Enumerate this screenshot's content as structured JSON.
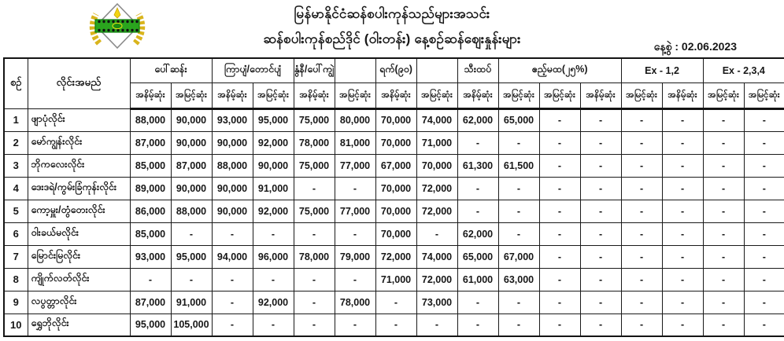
{
  "header": {
    "title_line1": "မြန်မာနိုင်ငံဆန်စပါးကုန်သည်များအသင်း",
    "title_line2": "ဆန်စပါးကုန်စည်ဒိုင် (ဝါးတန်း) နေ့စဉ်ဆန်ဈေးနှုန်းများ",
    "date_label": "နေ့စွဲ",
    "date_separator": ":",
    "date_value": "02.06.2023",
    "logo_name": "rice-association-seal",
    "logo_colors": {
      "wheat_gold": "#d9b41c",
      "band_green": "#2aa51e",
      "accent_yellow": "#f2d413"
    }
  },
  "table": {
    "col_no_label": "စဉ်",
    "col_name_label": "လိုင်းအမည်",
    "groups": [
      {
        "label": "ပေါ်ဆန်း",
        "span": 2
      },
      {
        "label": "ကြာပျံ/တောင်ပျံ",
        "span": 2
      },
      {
        "label": "နွံနီ/ပေါ်ကျွဲ",
        "span": 1
      },
      {
        "label": "",
        "span": 1
      },
      {
        "label": "ရက်(၉၀)",
        "span": 1
      },
      {
        "label": "",
        "span": 1
      },
      {
        "label": "သီးထပ်",
        "span": 1
      },
      {
        "label": "ဧည့်မထ(၂၅%)",
        "span": 3
      },
      {
        "label": "Ex - 1,2",
        "span": 2
      },
      {
        "label": "Ex - 2,3,4",
        "span": 2
      }
    ],
    "sub_headers": [
      "အနိမ့်ဆုံး",
      "အမြင့်ဆုံး",
      "အနိမ့်ဆုံး",
      "အမြင့်ဆုံး",
      "အနိမ့်ဆုံး",
      "အမြင့်ဆုံး",
      "အနိမ့်ဆုံး",
      "အမြင့်ဆုံး",
      "အနိမ့်ဆုံး",
      "အမြင့်ဆုံး",
      "အမြင့်ဆုံး",
      "အနိမ့်ဆုံး",
      "အမြင့်ဆုံး",
      "အနိမ့်ဆုံး",
      "အမြင့်ဆုံး",
      "အမြင့်ဆုံး"
    ],
    "rows": [
      {
        "no": "1",
        "name": "ဖျာပုံလိုင်း",
        "values": [
          "88,000",
          "90,000",
          "93,000",
          "95,000",
          "75,000",
          "80,000",
          "70,000",
          "74,000",
          "62,000",
          "65,000",
          "-",
          "-",
          "-",
          "-",
          "-",
          "-"
        ]
      },
      {
        "no": "2",
        "name": "မော်ကျွန်းလိုင်း",
        "values": [
          "87,000",
          "90,000",
          "90,000",
          "92,000",
          "78,000",
          "81,000",
          "70,000",
          "71,000",
          "-",
          "-",
          "-",
          "-",
          "-",
          "-",
          "-",
          "-"
        ]
      },
      {
        "no": "3",
        "name": "ဘိုကလေးလိုင်း",
        "values": [
          "85,000",
          "87,000",
          "88,000",
          "90,000",
          "75,000",
          "77,000",
          "67,000",
          "70,000",
          "61,300",
          "61,500",
          "-",
          "-",
          "-",
          "-",
          "-",
          "-"
        ]
      },
      {
        "no": "4",
        "name": "ဒေးဒရဲ/ကွမ်းခြံကုန်းလိုင်း",
        "values": [
          "89,000",
          "90,000",
          "90,000",
          "91,000",
          "-",
          "-",
          "70,000",
          "72,000",
          "-",
          "-",
          "-",
          "-",
          "-",
          "-",
          "-",
          "-"
        ]
      },
      {
        "no": "5",
        "name": "ကော့မှူး/တွံတေးလိုင်း",
        "values": [
          "86,000",
          "88,000",
          "90,000",
          "92,000",
          "75,000",
          "77,000",
          "70,000",
          "72,000",
          "-",
          "-",
          "-",
          "-",
          "-",
          "-",
          "-",
          "-"
        ]
      },
      {
        "no": "6",
        "name": "ဝါးခယ်မလိုင်း",
        "values": [
          "85,000",
          "-",
          "-",
          "-",
          "-",
          "-",
          "70,000",
          "-",
          "62,000",
          "-",
          "-",
          "-",
          "-",
          "-",
          "-",
          "-"
        ]
      },
      {
        "no": "7",
        "name": "မြောင်းမြလိုင်း",
        "values": [
          "93,000",
          "95,000",
          "94,000",
          "96,000",
          "78,000",
          "79,000",
          "72,000",
          "74,000",
          "65,000",
          "67,000",
          "-",
          "-",
          "-",
          "-",
          "-",
          "-"
        ]
      },
      {
        "no": "8",
        "name": "ကျိုက်လတ်လိုင်း",
        "values": [
          "-",
          "-",
          "-",
          "-",
          "-",
          "-",
          "71,000",
          "72,000",
          "61,000",
          "63,000",
          "-",
          "-",
          "-",
          "-",
          "-",
          "-"
        ]
      },
      {
        "no": "9",
        "name": "လပွတ္တာလိုင်း",
        "values": [
          "87,000",
          "91,000",
          "-",
          "92,000",
          "-",
          "78,000",
          "-",
          "73,000",
          "-",
          "-",
          "-",
          "-",
          "-",
          "-",
          "-",
          "-"
        ]
      },
      {
        "no": "10",
        "name": "ရွှေဘိုလိုင်း",
        "values": [
          "95,000",
          "105,000",
          "-",
          "-",
          "-",
          "-",
          "-",
          "-",
          "-",
          "-",
          "-",
          "-",
          "-",
          "-",
          "-",
          "-"
        ]
      }
    ]
  }
}
